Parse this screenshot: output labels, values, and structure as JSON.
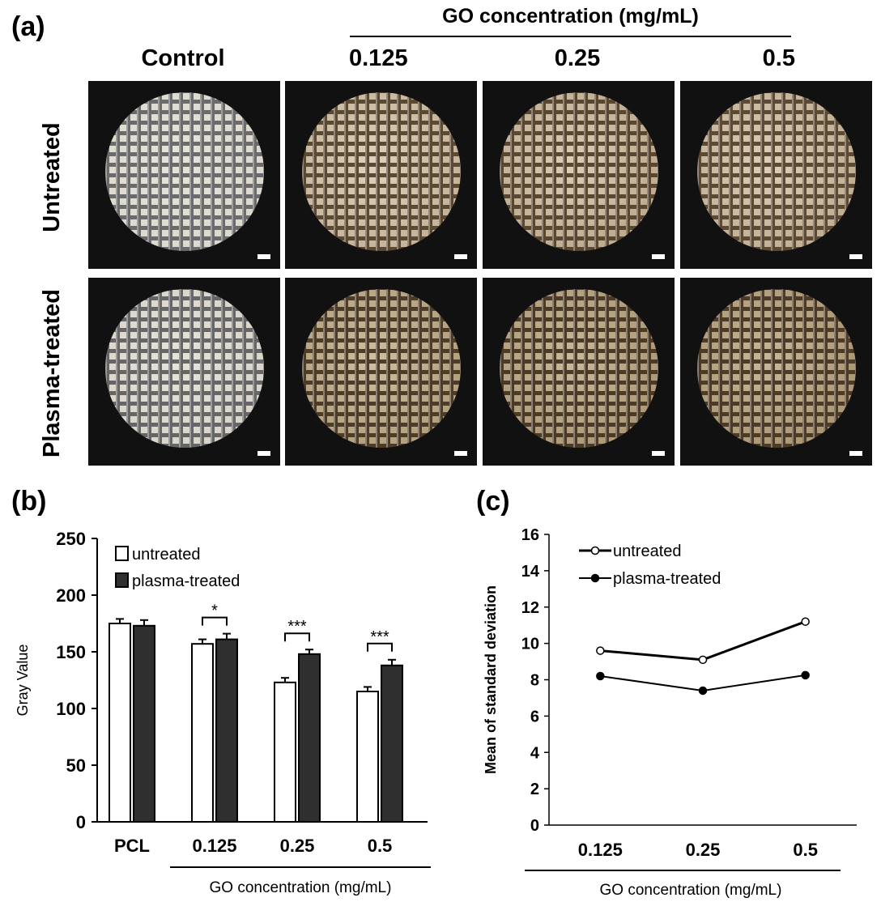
{
  "panel_a": {
    "label": "(a)",
    "go_header": "GO concentration (mg/mL)",
    "columns": [
      "Control",
      "0.125",
      "0.25",
      "0.5"
    ],
    "rows": [
      "Untreated",
      "Plasma-treated"
    ],
    "tiles": [
      {
        "disc_color": "#e7e4da",
        "grid_color": "#6b6b6b",
        "fiber_dark": "#d8d4c8"
      },
      {
        "disc_color": "#ddd3bd",
        "grid_color": "#5a4a34",
        "fiber_dark": "#bca78a"
      },
      {
        "disc_color": "#dbcfb7",
        "grid_color": "#5a4732",
        "fiber_dark": "#b49d7e"
      },
      {
        "disc_color": "#dcd0b8",
        "grid_color": "#5c4a34",
        "fiber_dark": "#b8a285"
      },
      {
        "disc_color": "#e6e3d9",
        "grid_color": "#666666",
        "fiber_dark": "#d4cfc3"
      },
      {
        "disc_color": "#cdbf9f",
        "grid_color": "#4d3d28",
        "fiber_dark": "#a89472"
      },
      {
        "disc_color": "#c9ba99",
        "grid_color": "#4a3a26",
        "fiber_dark": "#a38d6a"
      },
      {
        "disc_color": "#c8b897",
        "grid_color": "#4b3b27",
        "fiber_dark": "#a28b68"
      }
    ]
  },
  "panel_b": {
    "label": "(b)",
    "chart_data": {
      "type": "bar",
      "title": "",
      "categories": [
        "PCL",
        "0.125",
        "0.25",
        "0.5"
      ],
      "series": [
        {
          "name": "untreated",
          "color": "#ffffff",
          "values": [
            175,
            157,
            123,
            115
          ],
          "errors": [
            4,
            4,
            4,
            4
          ]
        },
        {
          "name": "plasma-treated",
          "color": "#2f2f2f",
          "values": [
            173,
            161,
            148,
            138
          ],
          "errors": [
            5,
            5,
            4,
            5
          ]
        }
      ],
      "ylabel": "Gray Value",
      "xlabel": "GO concentration (mg/mL)",
      "ylim": [
        0,
        250
      ],
      "yticks": [
        "0",
        "50",
        "100",
        "150",
        "200",
        "250"
      ],
      "significance": [
        "",
        "*",
        "***",
        "***"
      ],
      "legend_position": "top-left"
    }
  },
  "panel_c": {
    "label": "(c)",
    "chart_data": {
      "type": "line",
      "title": "",
      "x": [
        "0.125",
        "0.25",
        "0.5"
      ],
      "series": [
        {
          "name": "untreated",
          "marker": "open-circle",
          "values": [
            9.6,
            9.1,
            11.2
          ]
        },
        {
          "name": "plasma-treated",
          "marker": "filled-circle",
          "values": [
            8.2,
            7.4,
            8.25
          ]
        }
      ],
      "ylabel": "Mean of standard deviation",
      "xlabel": "GO concentration (mg/mL)",
      "ylim": [
        0,
        16
      ],
      "yticks": [
        "0",
        "2",
        "4",
        "6",
        "8",
        "10",
        "12",
        "14",
        "16"
      ],
      "legend_position": "top-left"
    }
  }
}
